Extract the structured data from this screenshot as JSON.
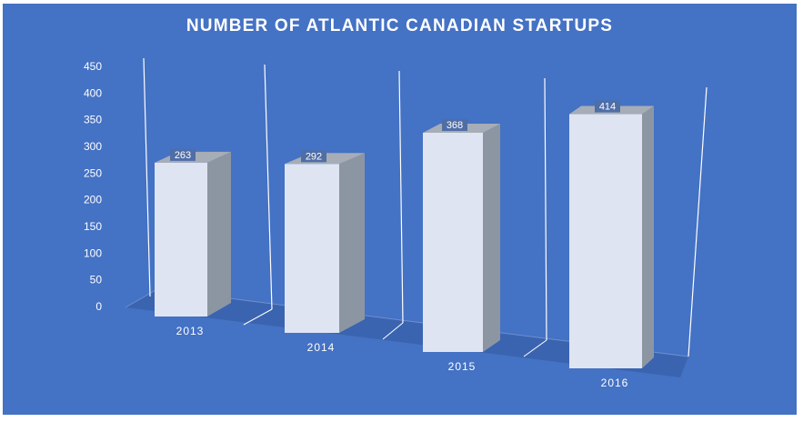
{
  "chart_data": {
    "type": "bar",
    "style": "3d-column",
    "title": "NUMBER OF ATLANTIC CANADIAN STARTUPS",
    "categories": [
      "2013",
      "2014",
      "2015",
      "2016"
    ],
    "values": [
      263,
      292,
      368,
      414
    ],
    "ylim": [
      0,
      450
    ],
    "yticks": [
      "0",
      "50",
      "100",
      "150",
      "200",
      "250",
      "300",
      "350",
      "400",
      "450"
    ],
    "xlabel": "",
    "ylabel": "",
    "grid": "vertical",
    "legend": "none",
    "colors": {
      "background": "#4472c4",
      "bar_front": "#dfe4f3",
      "bar_side": "#8c96a3",
      "bar_top": "#a7adb6",
      "floor": "#3a64b0",
      "label_box": "#4f6ea6",
      "text": "#ffffff"
    }
  }
}
